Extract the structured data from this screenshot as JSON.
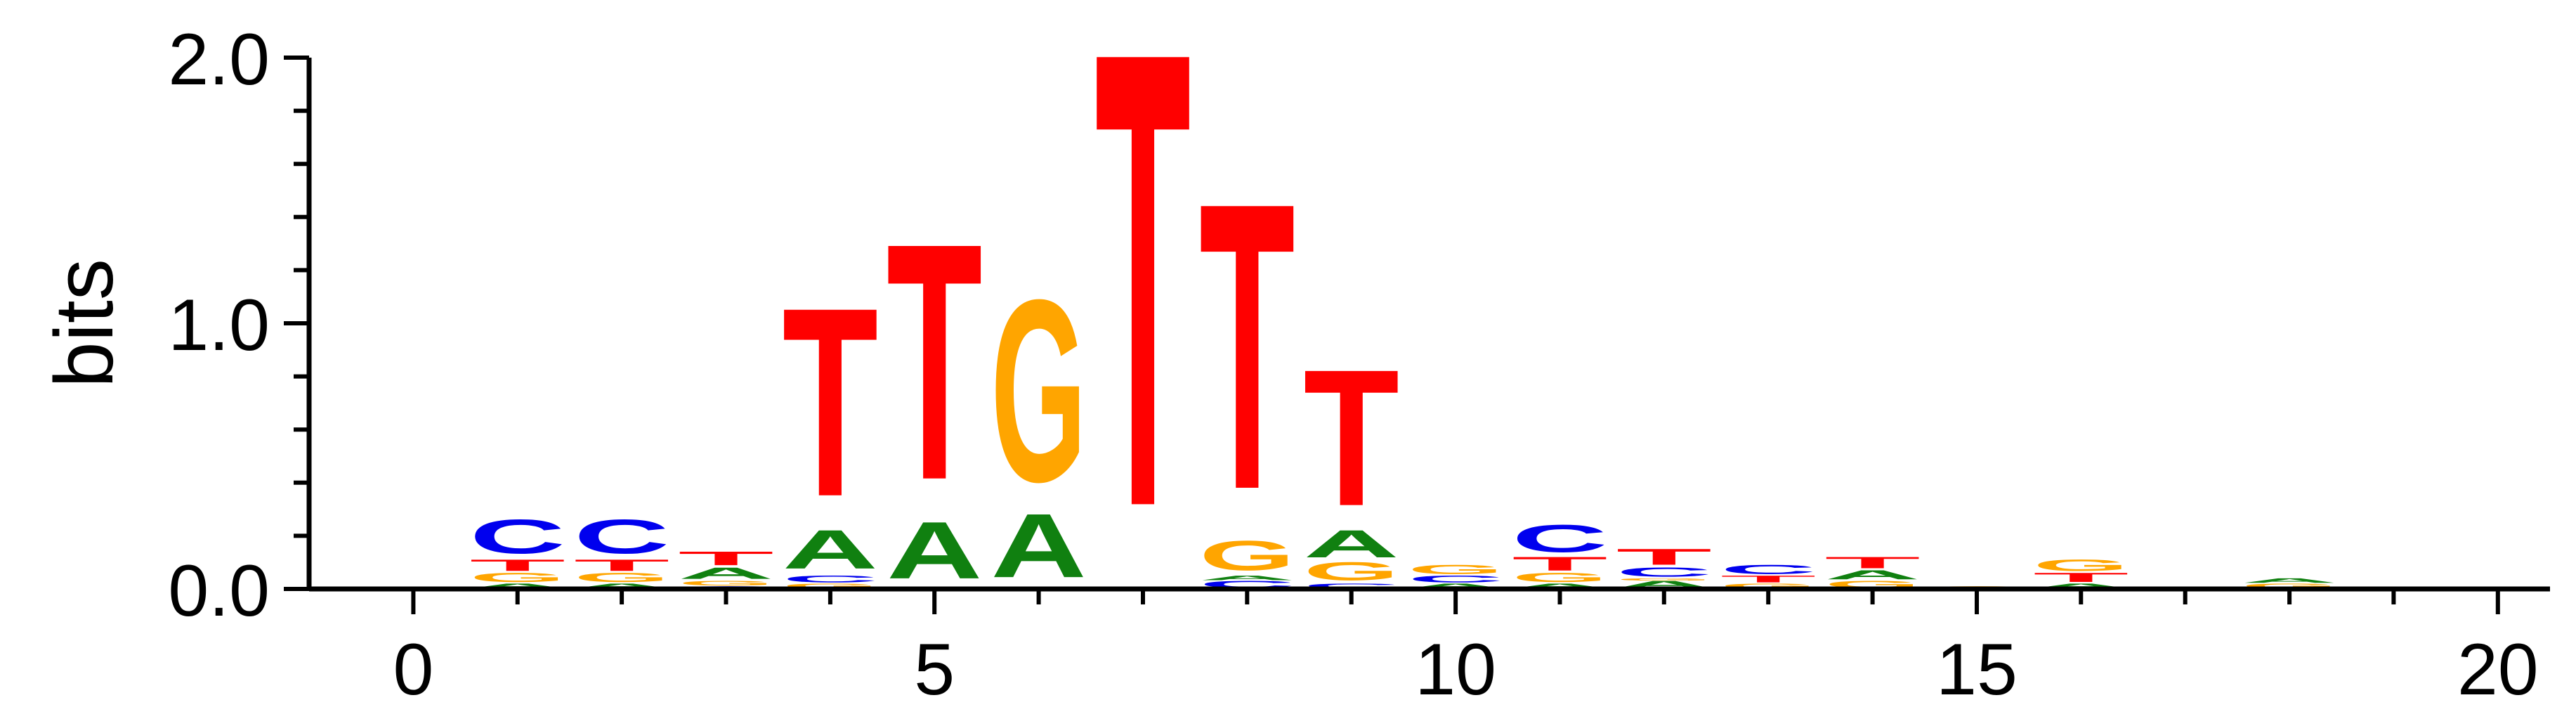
{
  "chart_data": {
    "type": "sequence-logo",
    "title": "",
    "xlabel": "",
    "ylabel": "bits",
    "xlim": [
      -1,
      20.5
    ],
    "ylim": [
      0,
      2.0
    ],
    "x_ticks": [
      "0",
      "5",
      "10",
      "15",
      "20"
    ],
    "y_ticks": [
      "0.0",
      "1.0",
      "2.0"
    ],
    "colors": {
      "A": "#108010",
      "C": "#0000ee",
      "G": "#ffa500",
      "T": "#ff0000",
      "axis": "#000000"
    },
    "positions": [
      {
        "x": 1,
        "letters": [
          {
            "l": "A",
            "h": 0.02
          },
          {
            "l": "G",
            "h": 0.04
          },
          {
            "l": "T",
            "h": 0.05
          },
          {
            "l": "C",
            "h": 0.15
          }
        ]
      },
      {
        "x": 2,
        "letters": [
          {
            "l": "A",
            "h": 0.02
          },
          {
            "l": "G",
            "h": 0.04
          },
          {
            "l": "T",
            "h": 0.05
          },
          {
            "l": "C",
            "h": 0.15
          }
        ]
      },
      {
        "x": 3,
        "letters": [
          {
            "l": "C",
            "h": 0.01
          },
          {
            "l": "G",
            "h": 0.02
          },
          {
            "l": "A",
            "h": 0.05
          },
          {
            "l": "T",
            "h": 0.06
          }
        ]
      },
      {
        "x": 4,
        "letters": [
          {
            "l": "G",
            "h": 0.02
          },
          {
            "l": "C",
            "h": 0.03
          },
          {
            "l": "A",
            "h": 0.17
          },
          {
            "l": "T",
            "h": 0.83
          }
        ]
      },
      {
        "x": 5,
        "letters": [
          {
            "l": "A",
            "h": 0.25
          },
          {
            "l": "T",
            "h": 1.04
          }
        ]
      },
      {
        "x": 6,
        "letters": [
          {
            "l": "A",
            "h": 0.28
          },
          {
            "l": "G",
            "h": 0.8
          }
        ]
      },
      {
        "x": 7,
        "letters": [
          {
            "l": "T",
            "h": 2.0
          }
        ]
      },
      {
        "x": 8,
        "letters": [
          {
            "l": "C",
            "h": 0.03
          },
          {
            "l": "A",
            "h": 0.02
          },
          {
            "l": "G",
            "h": 0.13
          },
          {
            "l": "T",
            "h": 1.26
          }
        ]
      },
      {
        "x": 9,
        "letters": [
          {
            "l": "C",
            "h": 0.02
          },
          {
            "l": "G",
            "h": 0.08
          },
          {
            "l": "A",
            "h": 0.12
          },
          {
            "l": "T",
            "h": 0.6
          }
        ]
      },
      {
        "x": 10,
        "letters": [
          {
            "l": "A",
            "h": 0.02
          },
          {
            "l": "C",
            "h": 0.03
          },
          {
            "l": "G",
            "h": 0.04
          }
        ]
      },
      {
        "x": 11,
        "letters": [
          {
            "l": "A",
            "h": 0.02
          },
          {
            "l": "G",
            "h": 0.04
          },
          {
            "l": "T",
            "h": 0.06
          },
          {
            "l": "C",
            "h": 0.12
          }
        ]
      },
      {
        "x": 12,
        "letters": [
          {
            "l": "A",
            "h": 0.03
          },
          {
            "l": "G",
            "h": 0.01
          },
          {
            "l": "C",
            "h": 0.04
          },
          {
            "l": "T",
            "h": 0.07
          }
        ]
      },
      {
        "x": 13,
        "letters": [
          {
            "l": "G",
            "h": 0.02
          },
          {
            "l": "T",
            "h": 0.03
          },
          {
            "l": "C",
            "h": 0.04
          }
        ]
      },
      {
        "x": 14,
        "letters": [
          {
            "l": "G",
            "h": 0.03
          },
          {
            "l": "A",
            "h": 0.04
          },
          {
            "l": "T",
            "h": 0.05
          }
        ]
      },
      {
        "x": 15,
        "letters": [
          {
            "l": "G",
            "h": 0.01
          }
        ]
      },
      {
        "x": 16,
        "letters": [
          {
            "l": "A",
            "h": 0.02
          },
          {
            "l": "T",
            "h": 0.04
          },
          {
            "l": "G",
            "h": 0.05
          }
        ]
      },
      {
        "x": 18,
        "letters": [
          {
            "l": "G",
            "h": 0.02
          },
          {
            "l": "A",
            "h": 0.02
          }
        ]
      }
    ]
  }
}
